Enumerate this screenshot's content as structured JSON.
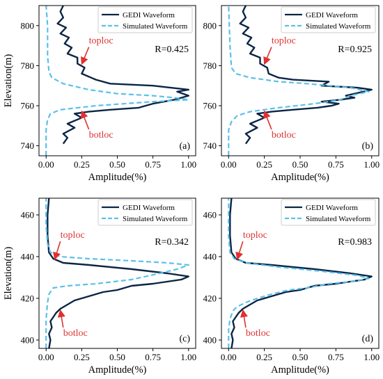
{
  "chart_data": [
    {
      "type": "line",
      "panel_label": "(a)",
      "xlabel": "Amplitude(%)",
      "ylabel": "Elevation(m)",
      "xlim": [
        -0.05,
        1.05
      ],
      "ylim": [
        735,
        810
      ],
      "xticks": [
        0.0,
        0.25,
        0.5,
        0.75,
        1.0
      ],
      "xtick_labels": [
        "0.00",
        "0.25",
        "0.50",
        "0.75",
        "1.00"
      ],
      "yticks": [
        740,
        760,
        780,
        800
      ],
      "ytick_labels": [
        "740",
        "760",
        "780",
        "800"
      ],
      "r_text": "R=0.425",
      "annotations": [
        {
          "text": "toploc",
          "point": [
            0.25,
            780
          ],
          "text_at": [
            0.3,
            791
          ]
        },
        {
          "text": "botloc",
          "point": [
            0.25,
            758
          ],
          "text_at": [
            0.3,
            744
          ]
        }
      ],
      "legend": {
        "position": "top-right",
        "entries": [
          "GEDI Waveform",
          "Simulated Waveform"
        ]
      },
      "series": [
        {
          "name": "GEDI Waveform",
          "style": "solid",
          "color": "#0b2545",
          "points": [
            [
              0.12,
              741
            ],
            [
              0.15,
              744
            ],
            [
              0.12,
              746
            ],
            [
              0.2,
              749
            ],
            [
              0.15,
              751
            ],
            [
              0.25,
              754
            ],
            [
              0.2,
              756
            ],
            [
              0.3,
              757
            ],
            [
              0.45,
              758
            ],
            [
              0.65,
              759
            ],
            [
              0.75,
              761
            ],
            [
              0.9,
              763
            ],
            [
              1.0,
              765
            ],
            [
              0.92,
              767
            ],
            [
              1.0,
              768
            ],
            [
              0.75,
              770
            ],
            [
              0.45,
              771
            ],
            [
              0.35,
              773
            ],
            [
              0.25,
              776
            ],
            [
              0.27,
              779
            ],
            [
              0.22,
              781
            ],
            [
              0.22,
              784
            ],
            [
              0.15,
              786
            ],
            [
              0.18,
              789
            ],
            [
              0.13,
              791
            ],
            [
              0.16,
              794
            ],
            [
              0.1,
              796
            ],
            [
              0.14,
              799
            ],
            [
              0.08,
              801
            ],
            [
              0.12,
              804
            ],
            [
              0.1,
              807
            ],
            [
              0.12,
              810
            ]
          ]
        },
        {
          "name": "Simulated Waveform",
          "style": "dashed",
          "color": "#5bc0eb",
          "points": [
            [
              0.0,
              735
            ],
            [
              0.0,
              748
            ],
            [
              0.01,
              753
            ],
            [
              0.03,
              756
            ],
            [
              0.1,
              758
            ],
            [
              0.35,
              760
            ],
            [
              0.75,
              762
            ],
            [
              1.0,
              763
            ],
            [
              0.9,
              764
            ],
            [
              0.75,
              765
            ],
            [
              0.5,
              766
            ],
            [
              0.3,
              768
            ],
            [
              0.12,
              771
            ],
            [
              0.04,
              774
            ],
            [
              0.02,
              777
            ],
            [
              0.01,
              785
            ],
            [
              0.01,
              800
            ],
            [
              0.0,
              810
            ]
          ]
        }
      ]
    },
    {
      "type": "line",
      "panel_label": "(b)",
      "xlabel": "Amplitude(%)",
      "ylabel": "",
      "xlim": [
        -0.05,
        1.05
      ],
      "ylim": [
        735,
        810
      ],
      "xticks": [
        0.0,
        0.25,
        0.5,
        0.75,
        1.0
      ],
      "xtick_labels": [
        "0.00",
        "0.25",
        "0.50",
        "0.75",
        "1.00"
      ],
      "yticks": [
        740,
        760,
        780,
        800
      ],
      "ytick_labels": [
        "740",
        "760",
        "780",
        "800"
      ],
      "r_text": "R=0.925",
      "annotations": [
        {
          "text": "toploc",
          "point": [
            0.25,
            780
          ],
          "text_at": [
            0.3,
            791
          ]
        },
        {
          "text": "botloc",
          "point": [
            0.25,
            758
          ],
          "text_at": [
            0.3,
            744
          ]
        }
      ],
      "legend": {
        "position": "top-right",
        "entries": [
          "GEDI Waveform",
          "Simulated Waveform"
        ]
      },
      "series": [
        {
          "name": "GEDI Waveform",
          "style": "solid",
          "color": "#0b2545",
          "points": [
            [
              0.12,
              741
            ],
            [
              0.15,
              744
            ],
            [
              0.12,
              746
            ],
            [
              0.2,
              749
            ],
            [
              0.15,
              751
            ],
            [
              0.25,
              754
            ],
            [
              0.2,
              756
            ],
            [
              0.3,
              757
            ],
            [
              0.45,
              758
            ],
            [
              0.62,
              759
            ],
            [
              0.72,
              760
            ],
            [
              0.77,
              761
            ],
            [
              0.65,
              762
            ],
            [
              0.78,
              763
            ],
            [
              0.88,
              764
            ],
            [
              0.82,
              765
            ],
            [
              1.0,
              768
            ],
            [
              0.9,
              769
            ],
            [
              0.65,
              770
            ],
            [
              0.7,
              772
            ],
            [
              0.45,
              773
            ],
            [
              0.35,
              774
            ],
            [
              0.28,
              776
            ],
            [
              0.27,
              779
            ],
            [
              0.22,
              781
            ],
            [
              0.22,
              784
            ],
            [
              0.15,
              786
            ],
            [
              0.18,
              789
            ],
            [
              0.13,
              791
            ],
            [
              0.16,
              794
            ],
            [
              0.1,
              796
            ],
            [
              0.14,
              799
            ],
            [
              0.08,
              801
            ],
            [
              0.12,
              804
            ],
            [
              0.1,
              807
            ],
            [
              0.12,
              810
            ]
          ]
        },
        {
          "name": "Simulated Waveform",
          "style": "dashed",
          "color": "#5bc0eb",
          "points": [
            [
              0.0,
              735
            ],
            [
              0.0,
              748
            ],
            [
              0.02,
              752
            ],
            [
              0.06,
              755
            ],
            [
              0.15,
              757
            ],
            [
              0.35,
              759
            ],
            [
              0.6,
              761
            ],
            [
              0.7,
              762
            ],
            [
              0.78,
              763
            ],
            [
              0.85,
              765
            ],
            [
              0.98,
              767
            ],
            [
              0.85,
              769
            ],
            [
              0.7,
              770
            ],
            [
              0.55,
              771
            ],
            [
              0.35,
              772
            ],
            [
              0.15,
              774
            ],
            [
              0.05,
              776
            ],
            [
              0.02,
              779
            ],
            [
              0.01,
              790
            ],
            [
              0.0,
              810
            ]
          ]
        }
      ]
    },
    {
      "type": "line",
      "panel_label": "(c)",
      "xlabel": "Amplitude(%)",
      "ylabel": "Elevation(m)",
      "xlim": [
        -0.05,
        1.05
      ],
      "ylim": [
        396,
        468
      ],
      "xticks": [
        0.0,
        0.25,
        0.5,
        0.75,
        1.0
      ],
      "xtick_labels": [
        "0.00",
        "0.25",
        "0.50",
        "0.75",
        "1.00"
      ],
      "yticks": [
        400,
        420,
        440,
        460
      ],
      "ytick_labels": [
        "400",
        "420",
        "440",
        "460"
      ],
      "r_text": "R=0.342",
      "annotations": [
        {
          "text": "toploc",
          "point": [
            0.06,
            438
          ],
          "text_at": [
            0.1,
            449
          ]
        },
        {
          "text": "botloc",
          "point": [
            0.1,
            415
          ],
          "text_at": [
            0.12,
            402
          ]
        }
      ],
      "legend": {
        "position": "top-right",
        "entries": [
          "GEDI Waveform",
          "Simulated Waveform"
        ]
      },
      "series": [
        {
          "name": "GEDI Waveform",
          "style": "solid",
          "color": "#0b2545",
          "points": [
            [
              0.02,
              396
            ],
            [
              0.03,
              400
            ],
            [
              0.02,
              403
            ],
            [
              0.04,
              406
            ],
            [
              0.03,
              409
            ],
            [
              0.05,
              411
            ],
            [
              0.07,
              413
            ],
            [
              0.1,
              415
            ],
            [
              0.15,
              417
            ],
            [
              0.2,
              419
            ],
            [
              0.3,
              421
            ],
            [
              0.4,
              423
            ],
            [
              0.5,
              424
            ],
            [
              0.6,
              426
            ],
            [
              0.75,
              427
            ],
            [
              0.85,
              428
            ],
            [
              0.95,
              429
            ],
            [
              1.0,
              430.5
            ],
            [
              0.85,
              432
            ],
            [
              0.6,
              434
            ],
            [
              0.3,
              436
            ],
            [
              0.12,
              437
            ],
            [
              0.05,
              439
            ],
            [
              0.02,
              442
            ],
            [
              0.01,
              450
            ],
            [
              0.01,
              460
            ],
            [
              0.02,
              468
            ]
          ]
        },
        {
          "name": "Simulated Waveform",
          "style": "dashed",
          "color": "#5bc0eb",
          "points": [
            [
              0.0,
              396
            ],
            [
              0.0,
              410
            ],
            [
              0.01,
              418
            ],
            [
              0.02,
              422
            ],
            [
              0.05,
              425
            ],
            [
              0.15,
              426
            ],
            [
              0.35,
              427
            ],
            [
              0.6,
              429
            ],
            [
              0.8,
              432
            ],
            [
              0.92,
              434
            ],
            [
              1.0,
              436
            ],
            [
              0.85,
              437
            ],
            [
              0.6,
              438
            ],
            [
              0.3,
              439
            ],
            [
              0.1,
              440
            ],
            [
              0.03,
              442
            ],
            [
              0.01,
              446
            ],
            [
              0.0,
              455
            ],
            [
              0.0,
              468
            ]
          ]
        }
      ]
    },
    {
      "type": "line",
      "panel_label": "(d)",
      "xlabel": "Amplitude(%)",
      "ylabel": "",
      "xlim": [
        -0.05,
        1.05
      ],
      "ylim": [
        396,
        468
      ],
      "xticks": [
        0.0,
        0.25,
        0.5,
        0.75,
        1.0
      ],
      "xtick_labels": [
        "0.00",
        "0.25",
        "0.50",
        "0.75",
        "1.00"
      ],
      "yticks": [
        400,
        420,
        440,
        460
      ],
      "ytick_labels": [
        "400",
        "420",
        "440",
        "460"
      ],
      "r_text": "R=0.983",
      "annotations": [
        {
          "text": "toploc",
          "point": [
            0.06,
            438
          ],
          "text_at": [
            0.1,
            449
          ]
        },
        {
          "text": "botloc",
          "point": [
            0.1,
            415
          ],
          "text_at": [
            0.12,
            402
          ]
        }
      ],
      "legend": {
        "position": "top-right",
        "entries": [
          "GEDI Waveform",
          "Simulated Waveform"
        ]
      },
      "series": [
        {
          "name": "GEDI Waveform",
          "style": "solid",
          "color": "#0b2545",
          "points": [
            [
              0.02,
              396
            ],
            [
              0.03,
              400
            ],
            [
              0.02,
              403
            ],
            [
              0.04,
              406
            ],
            [
              0.03,
              409
            ],
            [
              0.05,
              411
            ],
            [
              0.07,
              413
            ],
            [
              0.1,
              415
            ],
            [
              0.15,
              417
            ],
            [
              0.2,
              419
            ],
            [
              0.3,
              421
            ],
            [
              0.4,
              423
            ],
            [
              0.5,
              424
            ],
            [
              0.6,
              426
            ],
            [
              0.75,
              427
            ],
            [
              0.85,
              428
            ],
            [
              0.95,
              429
            ],
            [
              1.0,
              430.5
            ],
            [
              0.85,
              432
            ],
            [
              0.6,
              434
            ],
            [
              0.3,
              436
            ],
            [
              0.12,
              437
            ],
            [
              0.05,
              439
            ],
            [
              0.02,
              442
            ],
            [
              0.01,
              450
            ],
            [
              0.01,
              460
            ],
            [
              0.02,
              468
            ]
          ]
        },
        {
          "name": "Simulated Waveform",
          "style": "dashed",
          "color": "#5bc0eb",
          "points": [
            [
              0.0,
              396
            ],
            [
              0.0,
              405
            ],
            [
              0.01,
              410
            ],
            [
              0.03,
              414
            ],
            [
              0.06,
              416
            ],
            [
              0.12,
              418
            ],
            [
              0.2,
              420
            ],
            [
              0.3,
              422
            ],
            [
              0.42,
              424
            ],
            [
              0.55,
              425
            ],
            [
              0.7,
              427
            ],
            [
              0.85,
              428
            ],
            [
              0.98,
              429.5
            ],
            [
              0.9,
              431
            ],
            [
              0.65,
              433
            ],
            [
              0.35,
              435
            ],
            [
              0.12,
              437
            ],
            [
              0.04,
              439
            ],
            [
              0.01,
              442
            ],
            [
              0.0,
              450
            ],
            [
              0.0,
              468
            ]
          ]
        }
      ]
    }
  ]
}
